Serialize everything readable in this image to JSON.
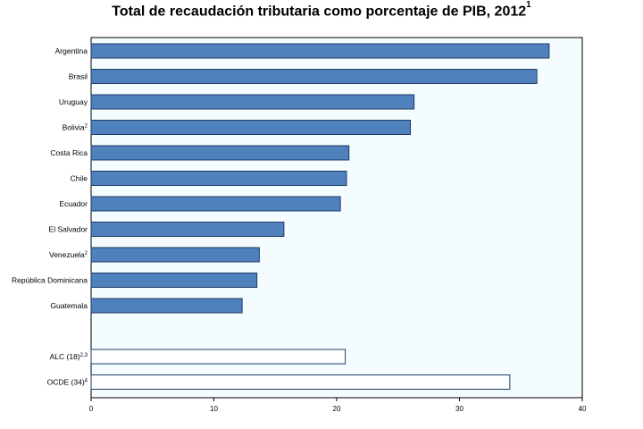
{
  "chart_data": {
    "type": "bar",
    "orientation": "horizontal",
    "title": "Total de recaudación tributaria como porcentaje de PIB, 2012",
    "title_sup": "1",
    "categories": [
      {
        "label": "Argentina",
        "sup": "",
        "value": 37.3,
        "group": "country"
      },
      {
        "label": "Brasil",
        "sup": "",
        "value": 36.3,
        "group": "country"
      },
      {
        "label": "Uruguay",
        "sup": "",
        "value": 26.3,
        "group": "country"
      },
      {
        "label": "Bolivia",
        "sup": "2",
        "value": 26.0,
        "group": "country"
      },
      {
        "label": "Costa Rica",
        "sup": "",
        "value": 21.0,
        "group": "country"
      },
      {
        "label": "Chile",
        "sup": "",
        "value": 20.8,
        "group": "country"
      },
      {
        "label": "Ecuador",
        "sup": "",
        "value": 20.3,
        "group": "country"
      },
      {
        "label": "El Salvador",
        "sup": "",
        "value": 15.7,
        "group": "country"
      },
      {
        "label": "Venezuela",
        "sup": "2",
        "value": 13.7,
        "group": "country"
      },
      {
        "label": "República Dominicana",
        "sup": "",
        "value": 13.5,
        "group": "country"
      },
      {
        "label": "Guatemala",
        "sup": "",
        "value": 12.3,
        "group": "country"
      },
      {
        "label": "ALC (18)",
        "sup": "2,3",
        "value": 20.7,
        "group": "aggregate"
      },
      {
        "label": "OCDE (34)",
        "sup": "4",
        "value": 34.1,
        "group": "aggregate"
      }
    ],
    "xlim": [
      0,
      40
    ],
    "xticks": [
      "0",
      "10",
      "20",
      "30",
      "40"
    ],
    "xlabel": "",
    "ylabel": "",
    "grid": false,
    "colors": {
      "country_fill": "#4f81bd",
      "aggregate_fill": "#ffffff",
      "bar_stroke": "#1f3b66",
      "plot_background": "#f4fcff",
      "plot_border": "#000000"
    }
  }
}
